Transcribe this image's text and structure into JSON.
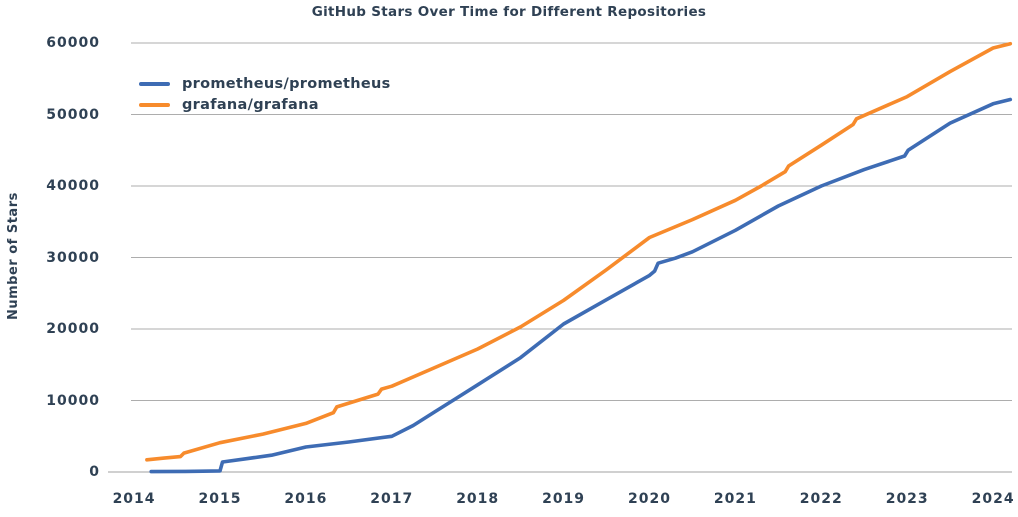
{
  "colors": {
    "text": "#2f4154",
    "grid": "#adadad",
    "axis": "#a0a0a0",
    "background": "#ffffff",
    "series_blue": "#3e6cb4",
    "series_orange": "#f78b2c"
  },
  "chart_data": {
    "type": "line",
    "title": "GitHub Stars Over Time for Different Repositories",
    "xlabel": "",
    "ylabel": "Number of Stars",
    "xlim": [
      2013.72,
      2024.22
    ],
    "ylim": [
      0,
      60000
    ],
    "x_ticks": [
      2014,
      2015,
      2016,
      2017,
      2018,
      2019,
      2020,
      2021,
      2022,
      2023,
      2024
    ],
    "y_ticks": [
      0,
      10000,
      20000,
      30000,
      40000,
      50000,
      60000
    ],
    "grid": "horizontal",
    "legend_position": "upper-left",
    "series": [
      {
        "name": "prometheus/prometheus",
        "color": "#3e6cb4",
        "points": [
          [
            2014.2,
            50
          ],
          [
            2014.6,
            80
          ],
          [
            2015.0,
            150
          ],
          [
            2015.03,
            1400
          ],
          [
            2015.3,
            1850
          ],
          [
            2015.6,
            2350
          ],
          [
            2016.0,
            3500
          ],
          [
            2016.5,
            4200
          ],
          [
            2017.0,
            5000
          ],
          [
            2017.25,
            6500
          ],
          [
            2017.5,
            8400
          ],
          [
            2017.75,
            10300
          ],
          [
            2018.0,
            12200
          ],
          [
            2018.5,
            16000
          ],
          [
            2019.0,
            20700
          ],
          [
            2019.5,
            24100
          ],
          [
            2020.0,
            27500
          ],
          [
            2020.06,
            28100
          ],
          [
            2020.1,
            29200
          ],
          [
            2020.3,
            29900
          ],
          [
            2020.5,
            30800
          ],
          [
            2021.0,
            33800
          ],
          [
            2021.5,
            37200
          ],
          [
            2022.0,
            40000
          ],
          [
            2022.5,
            42300
          ],
          [
            2022.97,
            44200
          ],
          [
            2023.01,
            45000
          ],
          [
            2023.5,
            48800
          ],
          [
            2024.0,
            51500
          ],
          [
            2024.2,
            52100
          ]
        ]
      },
      {
        "name": "grafana/grafana",
        "color": "#f78b2c",
        "points": [
          [
            2014.15,
            1700
          ],
          [
            2014.35,
            1950
          ],
          [
            2014.54,
            2150
          ],
          [
            2014.58,
            2650
          ],
          [
            2015.0,
            4100
          ],
          [
            2015.5,
            5300
          ],
          [
            2016.0,
            6800
          ],
          [
            2016.32,
            8300
          ],
          [
            2016.36,
            9100
          ],
          [
            2016.6,
            10000
          ],
          [
            2016.84,
            10900
          ],
          [
            2016.88,
            11600
          ],
          [
            2017.0,
            12000
          ],
          [
            2017.5,
            14600
          ],
          [
            2018.0,
            17200
          ],
          [
            2018.5,
            20300
          ],
          [
            2019.0,
            24000
          ],
          [
            2019.5,
            28300
          ],
          [
            2020.0,
            32800
          ],
          [
            2020.5,
            35300
          ],
          [
            2021.0,
            38000
          ],
          [
            2021.3,
            40000
          ],
          [
            2021.58,
            42000
          ],
          [
            2021.62,
            42800
          ],
          [
            2022.0,
            45700
          ],
          [
            2022.37,
            48600
          ],
          [
            2022.41,
            49400
          ],
          [
            2023.0,
            52500
          ],
          [
            2023.5,
            56000
          ],
          [
            2024.0,
            59300
          ],
          [
            2024.2,
            59900
          ]
        ]
      }
    ]
  }
}
